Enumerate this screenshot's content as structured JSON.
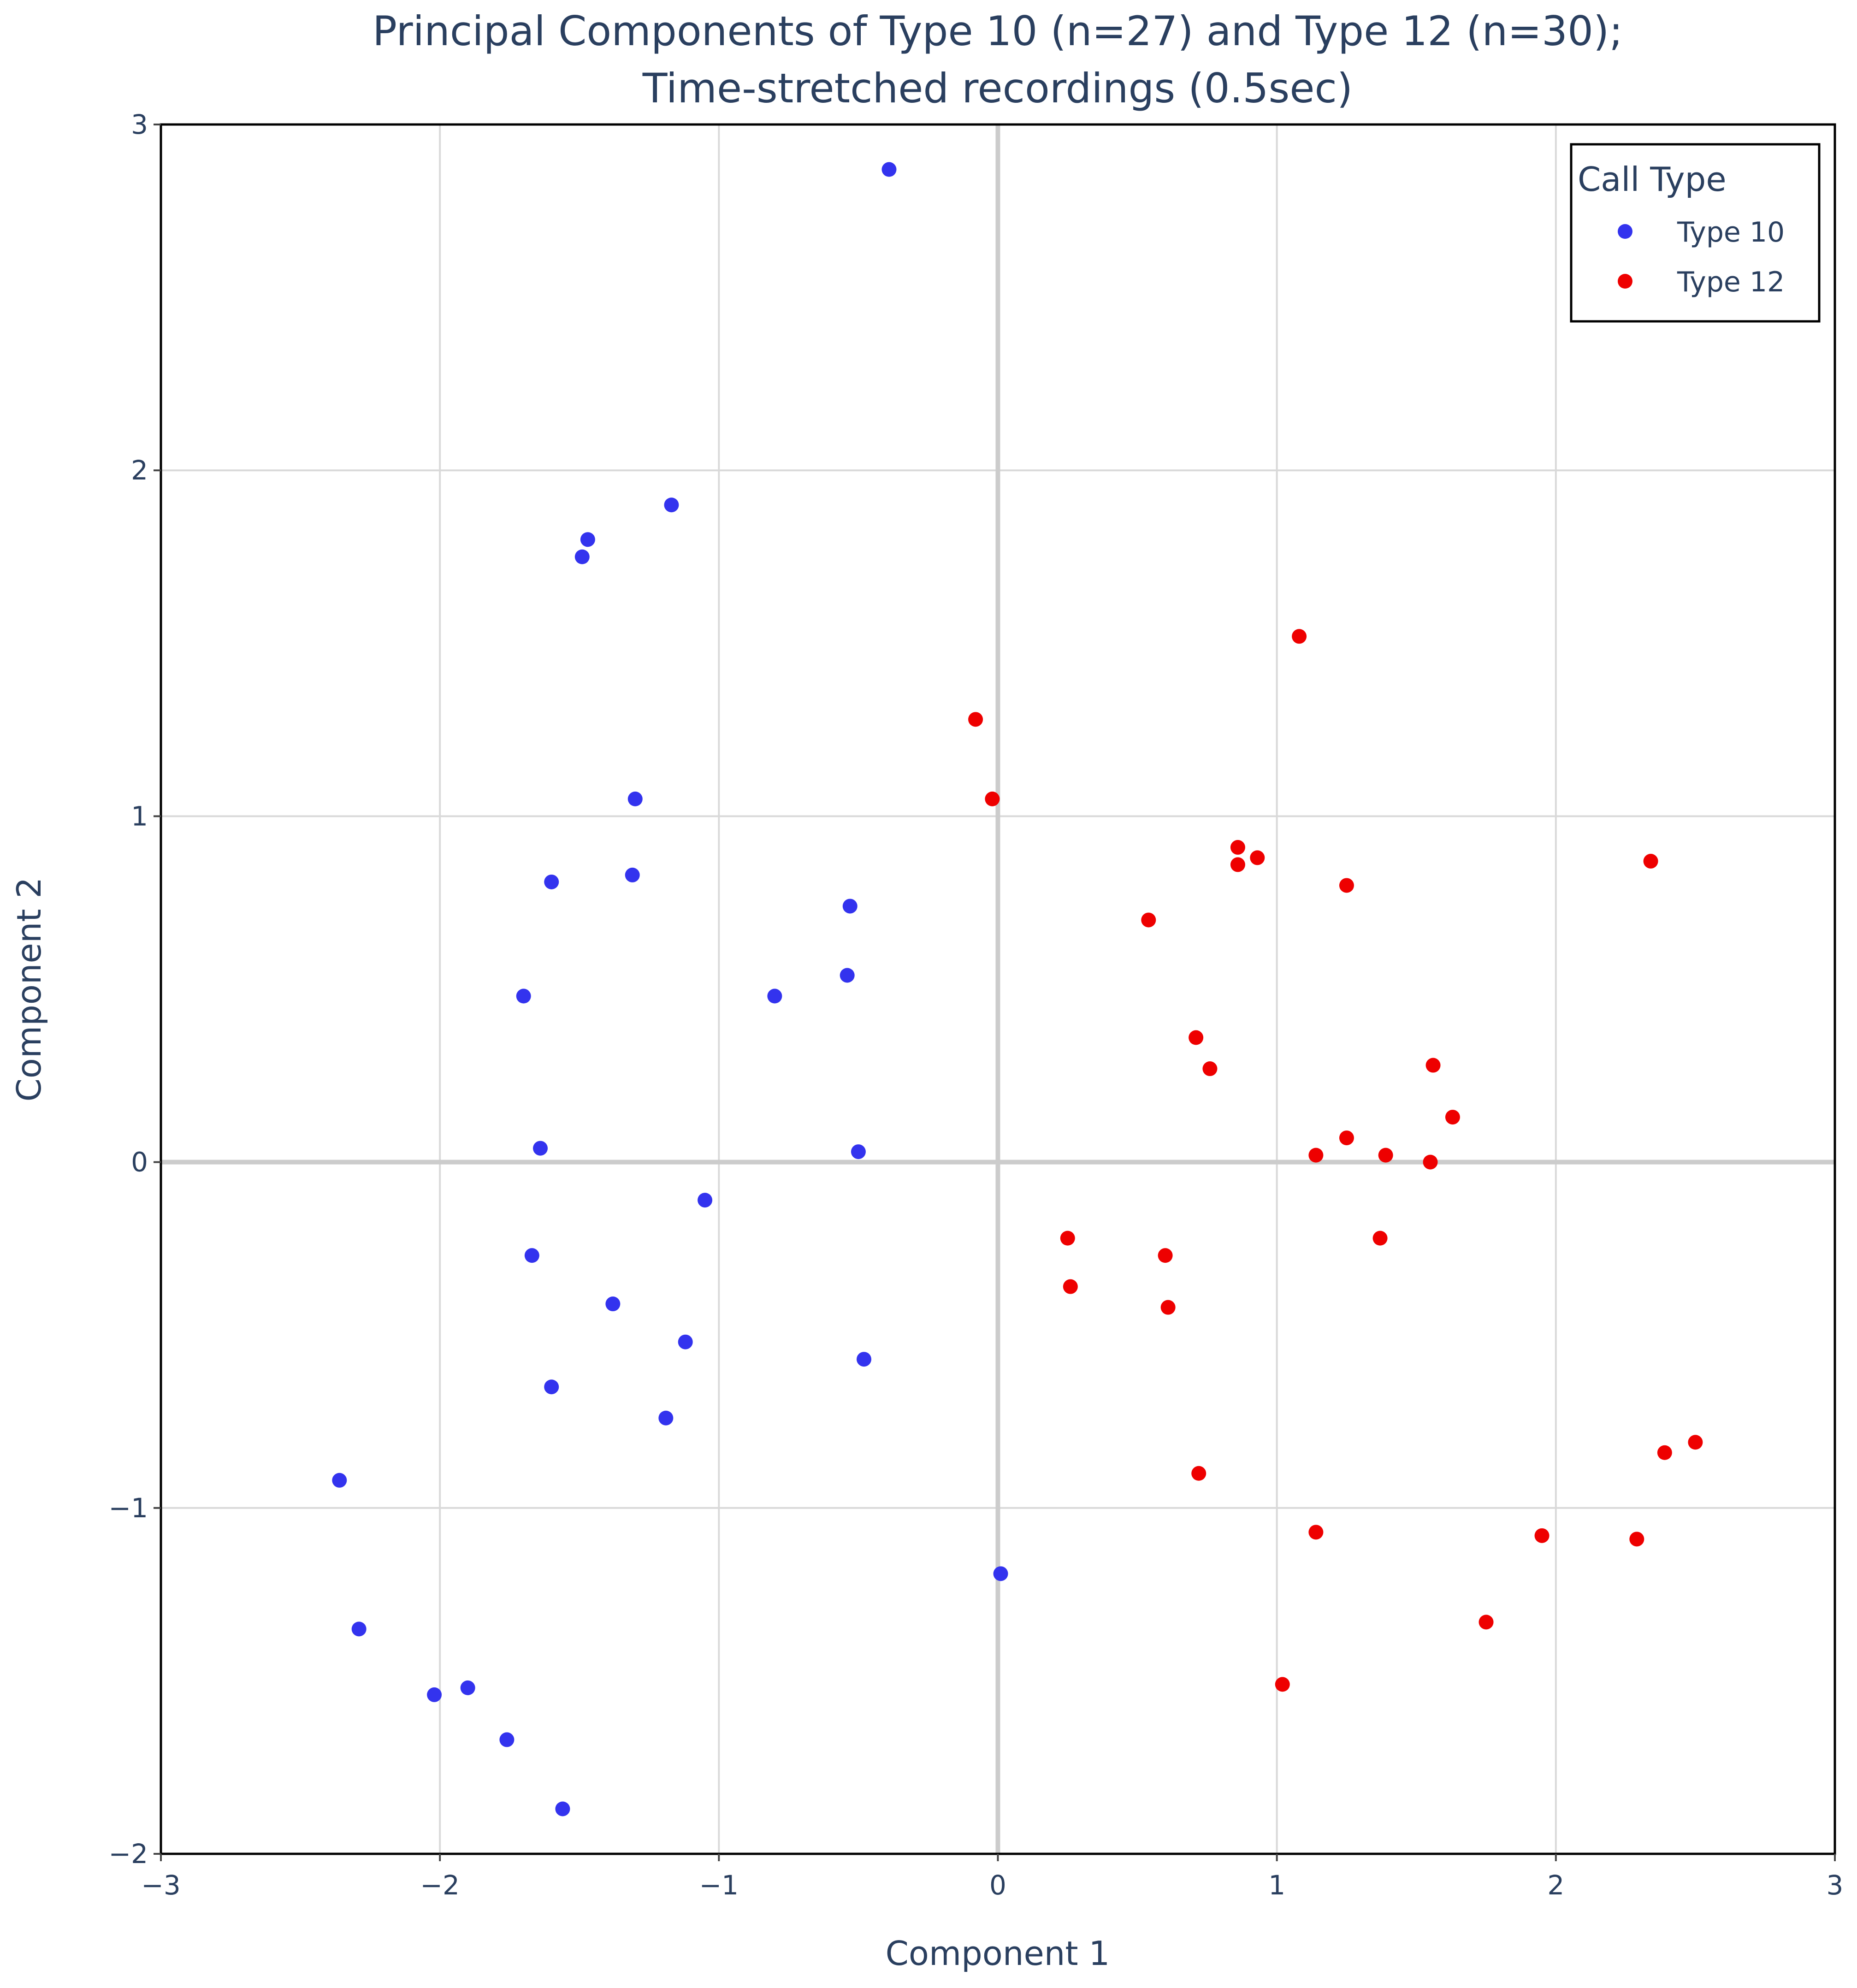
{
  "chart_data": {
    "type": "scatter",
    "title_lines": [
      "Principal Components of Type 10 (n=27) and Type 12 (n=30);",
      "Time-stretched recordings (0.5sec)"
    ],
    "xlabel": "Component 1",
    "ylabel": "Component 2",
    "xlim": [
      -3,
      3
    ],
    "ylim": [
      -2,
      3
    ],
    "xticks": [
      -3,
      -2,
      -1,
      0,
      1,
      2,
      3
    ],
    "yticks": [
      -2,
      -1,
      0,
      1,
      2,
      3
    ],
    "xtick_labels": [
      "−3",
      "−2",
      "−1",
      "0",
      "1",
      "2",
      "3"
    ],
    "ytick_labels": [
      "−2",
      "−1",
      "0",
      "1",
      "2",
      "3"
    ],
    "grid": true,
    "legend": {
      "title": "Call Type",
      "position": "top-right"
    },
    "series": [
      {
        "name": "Type 10",
        "color": "#3333ee",
        "points": [
          [
            -0.39,
            2.87
          ],
          [
            -1.17,
            1.9
          ],
          [
            -1.47,
            1.8
          ],
          [
            -1.49,
            1.75
          ],
          [
            -1.3,
            1.05
          ],
          [
            -1.6,
            0.81
          ],
          [
            -1.31,
            0.83
          ],
          [
            -0.53,
            0.74
          ],
          [
            -0.54,
            0.54
          ],
          [
            -0.8,
            0.48
          ],
          [
            -1.7,
            0.48
          ],
          [
            -1.64,
            0.04
          ],
          [
            -0.5,
            0.03
          ],
          [
            -1.05,
            -0.11
          ],
          [
            -1.67,
            -0.27
          ],
          [
            -1.38,
            -0.41
          ],
          [
            -1.12,
            -0.52
          ],
          [
            -0.48,
            -0.57
          ],
          [
            -1.6,
            -0.65
          ],
          [
            -1.19,
            -0.74
          ],
          [
            -2.36,
            -0.92
          ],
          [
            -2.29,
            -1.35
          ],
          [
            -2.02,
            -1.54
          ],
          [
            -1.9,
            -1.52
          ],
          [
            -1.76,
            -1.67
          ],
          [
            -1.56,
            -1.87
          ],
          [
            0.01,
            -1.19
          ]
        ]
      },
      {
        "name": "Type 12",
        "color": "#ee0000",
        "points": [
          [
            1.08,
            1.52
          ],
          [
            -0.08,
            1.28
          ],
          [
            -0.02,
            1.05
          ],
          [
            0.86,
            0.91
          ],
          [
            0.93,
            0.88
          ],
          [
            0.86,
            0.86
          ],
          [
            1.25,
            0.8
          ],
          [
            2.34,
            0.87
          ],
          [
            0.54,
            0.7
          ],
          [
            0.71,
            0.36
          ],
          [
            0.76,
            0.27
          ],
          [
            1.56,
            0.28
          ],
          [
            1.63,
            0.13
          ],
          [
            1.25,
            0.07
          ],
          [
            1.14,
            0.02
          ],
          [
            1.39,
            0.02
          ],
          [
            1.55,
            0.0
          ],
          [
            0.25,
            -0.22
          ],
          [
            1.37,
            -0.22
          ],
          [
            0.6,
            -0.27
          ],
          [
            0.26,
            -0.36
          ],
          [
            0.61,
            -0.42
          ],
          [
            0.72,
            -0.9
          ],
          [
            2.39,
            -0.84
          ],
          [
            2.5,
            -0.81
          ],
          [
            1.14,
            -1.07
          ],
          [
            1.95,
            -1.08
          ],
          [
            2.29,
            -1.09
          ],
          [
            1.75,
            -1.33
          ],
          [
            1.02,
            -1.51
          ]
        ]
      }
    ]
  }
}
